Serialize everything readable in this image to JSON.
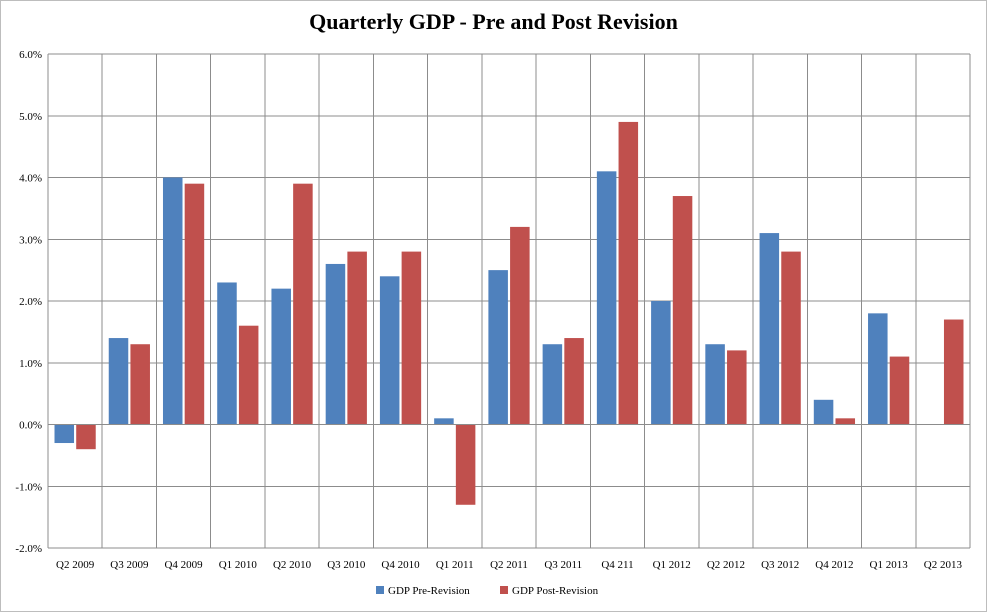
{
  "chart_data": {
    "type": "bar",
    "title": "Quarterly GDP - Pre and Post Revision",
    "xlabel": "",
    "ylabel": "",
    "ylim": [
      -0.02,
      0.06
    ],
    "y_ticks": [
      {
        "value": 0.06,
        "label": "6.0%"
      },
      {
        "value": 0.05,
        "label": "5.0%"
      },
      {
        "value": 0.04,
        "label": "4.0%"
      },
      {
        "value": 0.03,
        "label": "3.0%"
      },
      {
        "value": 0.02,
        "label": "2.0%"
      },
      {
        "value": 0.01,
        "label": "1.0%"
      },
      {
        "value": 0.0,
        "label": "0.0%"
      },
      {
        "value": -0.01,
        "label": "-1.0%"
      },
      {
        "value": -0.02,
        "label": "-2.0%"
      }
    ],
    "grid": true,
    "legend_position": "bottom",
    "categories": [
      "Q2 2009",
      "Q3 2009",
      "Q4 2009",
      "Q1 2010",
      "Q2 2010",
      "Q3 2010",
      "Q4 2010",
      "Q1 2011",
      "Q2 2011",
      "Q3 2011",
      "Q4 211",
      "Q1 2012",
      "Q2 2012",
      "Q3 2012",
      "Q4 2012",
      "Q1 2013",
      "Q2 2013"
    ],
    "series": [
      {
        "name": "GDP Pre-Revision",
        "color": "#4f81bd",
        "values": [
          -0.003,
          0.014,
          0.04,
          0.023,
          0.022,
          0.026,
          0.024,
          0.001,
          0.025,
          0.013,
          0.041,
          0.02,
          0.013,
          0.031,
          0.004,
          0.018,
          null
        ]
      },
      {
        "name": "GDP Post-Revision",
        "color": "#c0504d",
        "values": [
          -0.004,
          0.013,
          0.039,
          0.016,
          0.039,
          0.028,
          0.028,
          -0.013,
          0.032,
          0.014,
          0.049,
          0.037,
          0.012,
          0.028,
          0.001,
          0.011,
          0.017
        ]
      }
    ]
  }
}
